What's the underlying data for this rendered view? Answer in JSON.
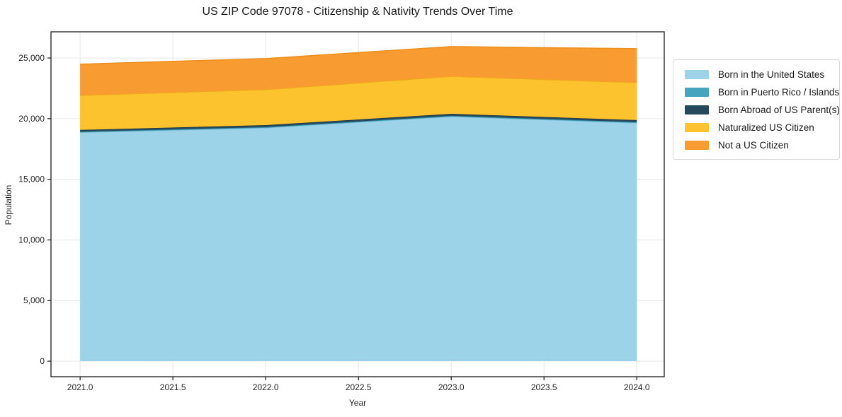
{
  "chart_data": {
    "type": "area",
    "stacked": true,
    "title": "US ZIP Code 97078 - Citizenship & Nativity Trends Over Time",
    "xlabel": "Year",
    "ylabel": "Population",
    "x": [
      2021,
      2022,
      2023,
      2024
    ],
    "series": [
      {
        "name": "Born in the United States",
        "color": "#9CD3E9",
        "edge": "#7EBEDB",
        "values": [
          18860,
          19240,
          20170,
          19650
        ]
      },
      {
        "name": "Born in Puerto Rico / Islands",
        "color": "#45A5BE",
        "edge": "#3391AC",
        "values": [
          60,
          60,
          60,
          60
        ]
      },
      {
        "name": "Born Abroad of US Parent(s)",
        "color": "#27495C",
        "edge": "#1C3A4A",
        "values": [
          150,
          170,
          170,
          170
        ]
      },
      {
        "name": "Naturalized US Citizen",
        "color": "#FDC32F",
        "edge": "#EDAD12",
        "values": [
          2850,
          2920,
          3090,
          3090
        ]
      },
      {
        "name": "Not a US Citizen",
        "color": "#F89B31",
        "edge": "#ED8D1C",
        "values": [
          2570,
          2560,
          2450,
          2800
        ]
      }
    ],
    "xticks": [
      2021.0,
      2021.5,
      2022.0,
      2022.5,
      2023.0,
      2023.5,
      2024.0
    ],
    "xtick_labels": [
      "2021.0",
      "2021.5",
      "2022.0",
      "2022.5",
      "2023.0",
      "2023.5",
      "2024.0"
    ],
    "yticks": [
      0,
      5000,
      10000,
      15000,
      20000,
      25000
    ],
    "ytick_labels": [
      "0",
      "5,000",
      "10,000",
      "15,000",
      "20,000",
      "25,000"
    ],
    "xlim": [
      2020.843,
      2024.148
    ],
    "ylim": [
      -1280,
      27160
    ],
    "grid": true,
    "grid_color": "#e7e7e7",
    "spine_color": "#1a1a1a",
    "tick_label_color": "#262626",
    "legend_position": "right"
  }
}
